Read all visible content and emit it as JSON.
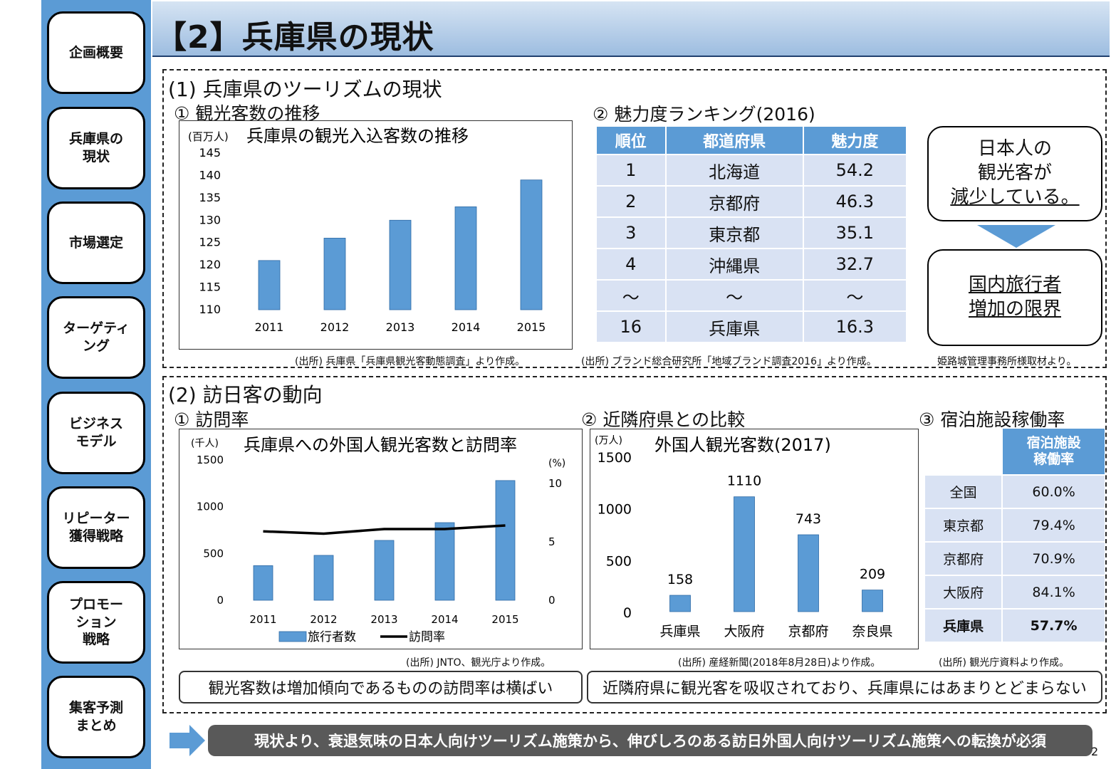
{
  "nav": [
    {
      "label": "企画概要",
      "active": false
    },
    {
      "label": "兵庫県の\n現状",
      "active": true
    },
    {
      "label": "市場選定",
      "active": false
    },
    {
      "label": "ターゲティ\nング",
      "active": false
    },
    {
      "label": "ビジネス\nモデル",
      "active": false
    },
    {
      "label": "リピーター\n獲得戦略",
      "active": false
    },
    {
      "label": "プロモー\nション\n戦略",
      "active": false
    },
    {
      "label": "集客予測\nまとめ",
      "active": false
    }
  ],
  "header": {
    "title": "【2】兵庫県の現状"
  },
  "s1": {
    "heading": "(1) 兵庫県のツーリズムの現状",
    "sub1": "① 観光客数の推移",
    "sub2": "② 魅力度ランキング(2016)",
    "callout_top": [
      "日本人の",
      "観光客が",
      "減少している。"
    ],
    "callout_bottom": [
      "国内旅行者",
      "増加の限界"
    ],
    "src1": "(出所)  兵庫県「兵庫県観光客動態調査」より作成。",
    "src2": "(出所)  ブランド総合研究所「地域ブランド調査2016」より作成。",
    "src3": "姫路城管理事務所様取材より。"
  },
  "ranking": {
    "headers": [
      "順位",
      "都道府県",
      "魅力度"
    ],
    "rows": [
      [
        "1",
        "北海道",
        "54.2"
      ],
      [
        "2",
        "京都府",
        "46.3"
      ],
      [
        "3",
        "東京都",
        "35.1"
      ],
      [
        "4",
        "沖縄県",
        "32.7"
      ],
      [
        "～",
        "～",
        "～"
      ],
      [
        "16",
        "兵庫県",
        "16.3"
      ]
    ]
  },
  "s2": {
    "heading": "(2) 訪日客の動向",
    "sub1": "① 訪問率",
    "sub2": "② 近隣府県との比較",
    "sub3": "③ 宿泊施設稼働率",
    "src1": "(出所)  JNTO、観光庁より作成。",
    "src2": "(出所)  産経新聞(2018年8月28日)より作成。",
    "src3": "(出所)  観光庁資料より作成。",
    "summary1": "観光客数は増加傾向であるものの訪問率は横ばい",
    "summary2": "近隣府県に観光客を吸収されており、兵庫県にはあまりとどまらない"
  },
  "occupancy": {
    "header": "宿泊施設\n稼働率",
    "rows": [
      [
        "全国",
        "60.0%"
      ],
      [
        "東京都",
        "79.4%"
      ],
      [
        "京都府",
        "70.9%"
      ],
      [
        "大阪府",
        "84.1%"
      ],
      [
        "兵庫県",
        "57.7%"
      ]
    ]
  },
  "bottom": {
    "message": "現状より、衰退気味の日本人向けツーリズム施策から、伸びしろのある訪日外国人向けツーリズム施策への転換が必須"
  },
  "page_number": "2",
  "colors": {
    "bar": "#5b9bd5",
    "header_bg": "#5b9bd5",
    "cell_bg": "#d9e2f3",
    "sidebar": "#5b9bd5"
  },
  "chart_data": [
    {
      "type": "bar",
      "title": "兵庫県の観光入込客数の推移",
      "unit_label": "(百万人)",
      "categories": [
        "2011",
        "2012",
        "2013",
        "2014",
        "2015"
      ],
      "values": [
        121,
        126,
        130,
        133,
        139
      ],
      "ylim": [
        110,
        145
      ],
      "yticks": [
        110,
        115,
        120,
        125,
        130,
        135,
        140,
        145
      ]
    },
    {
      "type": "bar+line",
      "title": "兵庫県への外国人観光客数と訪問率",
      "unit_label_left": "(千人)",
      "unit_label_right": "(%)",
      "categories": [
        "2011",
        "2012",
        "2013",
        "2014",
        "2015"
      ],
      "series": [
        {
          "name": "旅行者数",
          "type": "bar",
          "axis": "left",
          "values": [
            370,
            480,
            640,
            830,
            1280
          ]
        },
        {
          "name": "訪問率",
          "type": "line",
          "axis": "right",
          "values": [
            5.9,
            5.7,
            6.1,
            6.1,
            6.4
          ]
        }
      ],
      "ylim_left": [
        0,
        1500
      ],
      "yticks_left": [
        0,
        500,
        1000,
        1500
      ],
      "ylim_right": [
        0,
        10
      ],
      "yticks_right": [
        0,
        5,
        10
      ]
    },
    {
      "type": "bar",
      "title": "外国人観光客数(2017)",
      "unit_label": "(万人)",
      "categories": [
        "兵庫県",
        "大阪府",
        "京都府",
        "奈良県"
      ],
      "values": [
        158,
        1110,
        743,
        209
      ],
      "data_labels": [
        "158",
        "1110",
        "743",
        "209"
      ],
      "ylim": [
        0,
        1500
      ],
      "yticks": [
        0,
        500,
        1000,
        1500
      ]
    }
  ]
}
